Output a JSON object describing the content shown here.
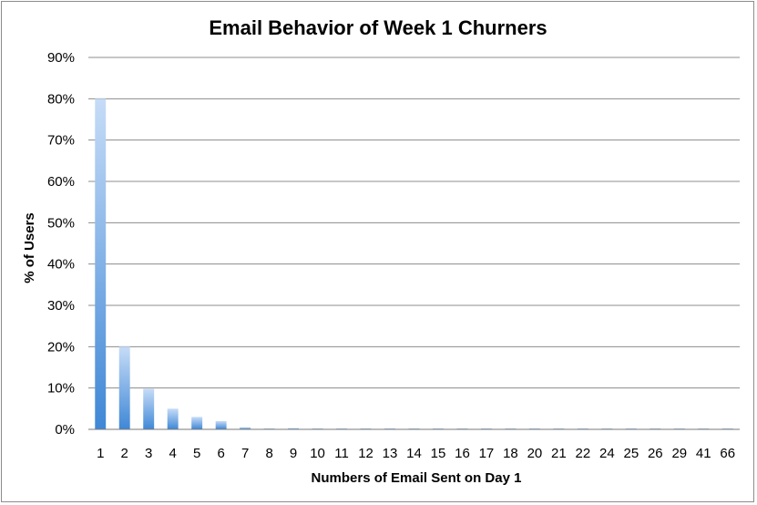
{
  "chart_data": {
    "type": "bar",
    "title": "Email Behavior of Week 1 Churners",
    "xlabel": "Numbers of Email Sent on Day 1",
    "ylabel": "% of Users",
    "ylim": [
      0,
      90
    ],
    "y_ticks": [
      "0%",
      "10%",
      "20%",
      "30%",
      "40%",
      "50%",
      "60%",
      "70%",
      "80%",
      "90%"
    ],
    "grid": true,
    "legend": "none",
    "categories": [
      "1",
      "2",
      "3",
      "4",
      "5",
      "6",
      "7",
      "8",
      "9",
      "10",
      "11",
      "12",
      "13",
      "14",
      "15",
      "16",
      "17",
      "18",
      "20",
      "21",
      "22",
      "24",
      "25",
      "26",
      "29",
      "41",
      "66"
    ],
    "values": [
      80,
      20,
      9.8,
      5,
      3,
      2,
      0.5,
      0.2,
      0.3,
      0.1,
      0.1,
      0.1,
      0.1,
      0.1,
      0.1,
      0.1,
      0.1,
      0.1,
      0.1,
      0.1,
      0.1,
      0.1,
      0.1,
      0.1,
      0.1,
      0.1,
      0.1
    ],
    "colors": {
      "bar_top": "#c6dcf7",
      "bar_bottom": "#3f87d6",
      "grid": "#8c8c8c"
    }
  }
}
